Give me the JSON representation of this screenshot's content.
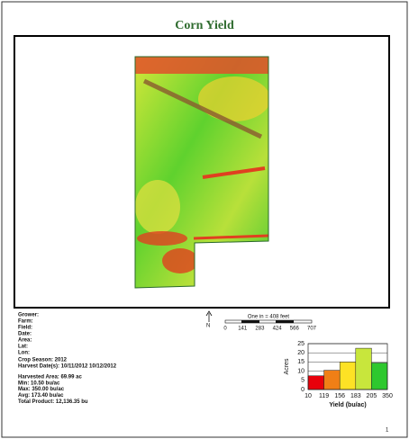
{
  "header": {
    "title": "Corn Yield"
  },
  "info": {
    "fields": [
      "Grower:",
      "Farm:",
      "Field:",
      "Date:",
      "Area:",
      "Lat:",
      "Lon:"
    ],
    "season": [
      "Crop Season: 2012",
      "Harvest Date(s): 10/11/2012 10/12/2012"
    ],
    "stats": [
      "Harvested Area: 69.99 ac",
      "Min: 10.50 bu/ac",
      "Max: 350.00 bu/ac",
      "Avg: 173.40 bu/ac",
      "Total Product: 12,136.35 bu"
    ]
  },
  "scale": {
    "north": "N",
    "label": "One in = 408 feet",
    "ticks": [
      "0",
      "141",
      "283",
      "424",
      "566",
      "707"
    ]
  },
  "chart_data": {
    "type": "histogram",
    "x_label": "Yield (bu/ac)",
    "y_label": "Acres",
    "bins": [
      10,
      119,
      156,
      183,
      205,
      350
    ],
    "values": [
      7.5,
      10.5,
      15,
      22.5,
      14.5
    ],
    "colors": [
      "#e8000b",
      "#f07f16",
      "#fde225",
      "#c8e63c",
      "#2ec82e"
    ],
    "ylim": [
      0,
      25
    ],
    "yticks": [
      0,
      5,
      10,
      15,
      20,
      25
    ]
  },
  "page_number": "1"
}
